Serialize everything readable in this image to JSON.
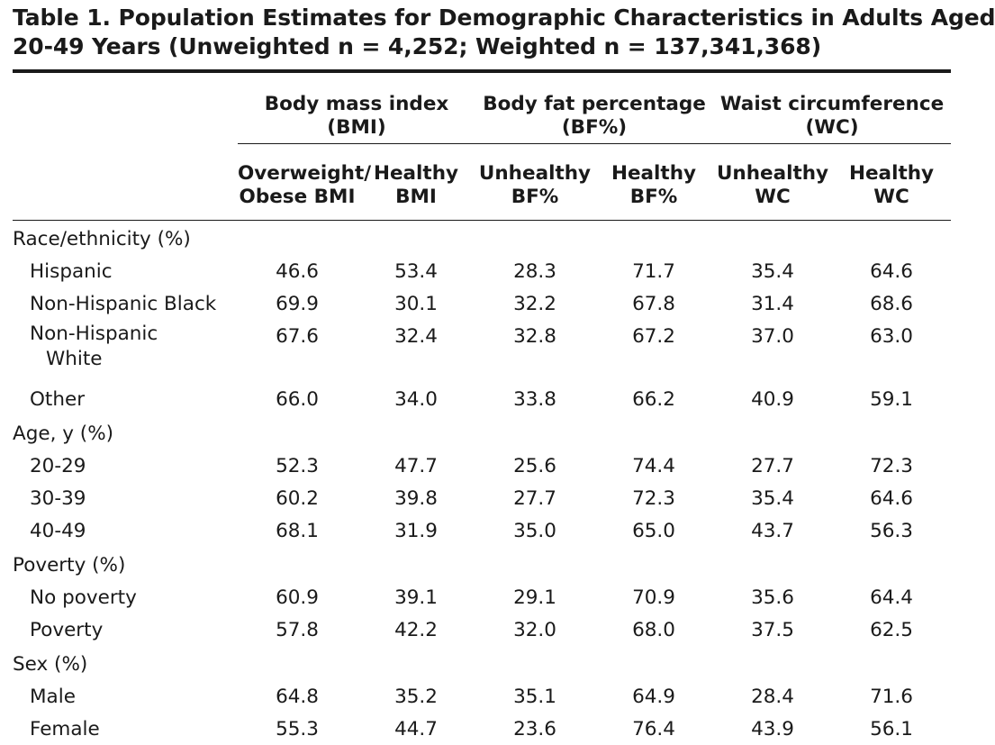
{
  "caption": {
    "line1": "Table 1. Population Estimates for Demographic Characteristics in Adults Aged",
    "line2": "20-49 Years (Unweighted n = 4,252; Weighted n = 137,341,368)"
  },
  "groups": [
    {
      "line1": "Body mass index",
      "line2": "(BMI)"
    },
    {
      "line1": "Body fat percentage",
      "line2": "(BF%)"
    },
    {
      "line1": "Waist circumference",
      "line2": "(WC)"
    }
  ],
  "subheaders": [
    {
      "line1": "Overweight/",
      "line2": "Obese BMI"
    },
    {
      "line1": "Healthy",
      "line2": "BMI"
    },
    {
      "line1": "Unhealthy",
      "line2": "BF%"
    },
    {
      "line1": "Healthy",
      "line2": "BF%"
    },
    {
      "line1": "Unhealthy",
      "line2": "WC"
    },
    {
      "line1": "Healthy",
      "line2": "WC"
    }
  ],
  "sections": [
    {
      "title": "Race/ethnicity (%)",
      "rows": [
        {
          "label": "Hispanic",
          "values": [
            "46.6",
            "53.4",
            "28.3",
            "71.7",
            "35.4",
            "64.6"
          ]
        },
        {
          "label": "Non-Hispanic Black",
          "values": [
            "69.9",
            "30.1",
            "32.2",
            "67.8",
            "31.4",
            "68.6"
          ]
        },
        {
          "label": "Non-Hispanic",
          "label2": "White",
          "values": [
            "67.6",
            "32.4",
            "32.8",
            "67.2",
            "37.0",
            "63.0"
          ]
        },
        {
          "label": "Other",
          "values": [
            "66.0",
            "34.0",
            "33.8",
            "66.2",
            "40.9",
            "59.1"
          ]
        }
      ]
    },
    {
      "title": "Age, y (%)",
      "rows": [
        {
          "label": "20-29",
          "values": [
            "52.3",
            "47.7",
            "25.6",
            "74.4",
            "27.7",
            "72.3"
          ]
        },
        {
          "label": "30-39",
          "values": [
            "60.2",
            "39.8",
            "27.7",
            "72.3",
            "35.4",
            "64.6"
          ]
        },
        {
          "label": "40-49",
          "values": [
            "68.1",
            "31.9",
            "35.0",
            "65.0",
            "43.7",
            "56.3"
          ]
        }
      ]
    },
    {
      "title": "Poverty (%)",
      "rows": [
        {
          "label": "No poverty",
          "values": [
            "60.9",
            "39.1",
            "29.1",
            "70.9",
            "35.6",
            "64.4"
          ]
        },
        {
          "label": "Poverty",
          "values": [
            "57.8",
            "42.2",
            "32.0",
            "68.0",
            "37.5",
            "62.5"
          ]
        }
      ]
    },
    {
      "title": "Sex (%)",
      "rows": [
        {
          "label": "Male",
          "values": [
            "64.8",
            "35.2",
            "35.1",
            "64.9",
            "28.4",
            "71.6"
          ]
        },
        {
          "label": "Female",
          "values": [
            "55.3",
            "44.7",
            "23.6",
            "76.4",
            "43.9",
            "56.1"
          ]
        }
      ]
    }
  ]
}
